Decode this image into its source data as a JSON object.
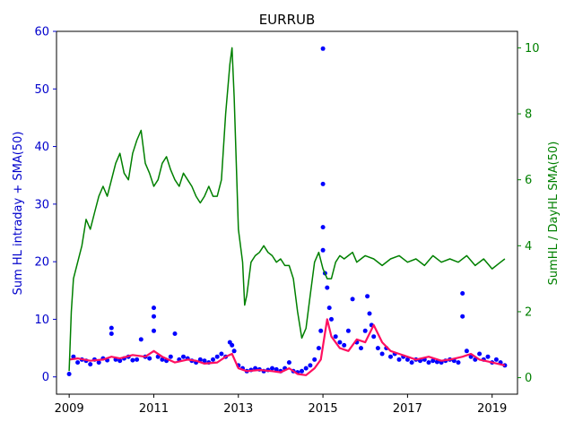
{
  "chart_data": {
    "type": "line",
    "title": "EURRUB",
    "xlabel": "",
    "ylabel_left": "Sum HL intraday + SMA(50)",
    "ylabel_right": "SumHL / DayHL SMA(50)",
    "xlim": [
      2008.7,
      2019.6
    ],
    "ylim_left": [
      -3,
      60
    ],
    "ylim_right": [
      -0.5,
      10.5
    ],
    "x_ticks": [
      {
        "value": 2009,
        "label": "2009"
      },
      {
        "value": 2011,
        "label": "2011"
      },
      {
        "value": 2013,
        "label": "2013"
      },
      {
        "value": 2015,
        "label": "2015"
      },
      {
        "value": 2017,
        "label": "2017"
      },
      {
        "value": 2019,
        "label": "2019"
      }
    ],
    "y_ticks_left": [
      {
        "value": 0,
        "label": "0"
      },
      {
        "value": 10,
        "label": "10"
      },
      {
        "value": 20,
        "label": "20"
      },
      {
        "value": 30,
        "label": "30"
      },
      {
        "value": 40,
        "label": "40"
      },
      {
        "value": 50,
        "label": "50"
      },
      {
        "value": 60,
        "label": "60"
      }
    ],
    "y_ticks_right": [
      {
        "value": 0,
        "label": "0"
      },
      {
        "value": 2,
        "label": "2"
      },
      {
        "value": 4,
        "label": "4"
      },
      {
        "value": 6,
        "label": "6"
      },
      {
        "value": 8,
        "label": "8"
      },
      {
        "value": 10,
        "label": "10"
      }
    ],
    "colors": {
      "left_axis": "#0000cc",
      "right_axis": "#008000",
      "scatter": "#0000ff",
      "sma": "#ff1060",
      "ratio": "#008000"
    },
    "series": [
      {
        "kind": "scatter",
        "axis": "left",
        "color": "#0000ff",
        "x": [
          2009.0,
          2009.1,
          2009.2,
          2009.3,
          2009.4,
          2009.5,
          2009.6,
          2009.7,
          2009.8,
          2009.9,
          2010.0,
          2010.0,
          2010.1,
          2010.2,
          2010.3,
          2010.4,
          2010.5,
          2010.6,
          2010.7,
          2010.8,
          2010.9,
          2011.0,
          2011.0,
          2011.0,
          2011.1,
          2011.2,
          2011.3,
          2011.4,
          2011.5,
          2011.6,
          2011.7,
          2011.8,
          2011.9,
          2012.0,
          2012.1,
          2012.2,
          2012.3,
          2012.4,
          2012.5,
          2012.6,
          2012.7,
          2012.8,
          2012.85,
          2012.9,
          2013.0,
          2013.1,
          2013.2,
          2013.3,
          2013.4,
          2013.5,
          2013.6,
          2013.7,
          2013.8,
          2013.9,
          2014.0,
          2014.1,
          2014.2,
          2014.3,
          2014.4,
          2014.5,
          2014.6,
          2014.7,
          2014.8,
          2014.9,
          2014.95,
          2015.0,
          2015.0,
          2015.0,
          2015.0,
          2015.05,
          2015.1,
          2015.15,
          2015.2,
          2015.3,
          2015.4,
          2015.5,
          2015.6,
          2015.7,
          2015.8,
          2015.9,
          2016.0,
          2016.05,
          2016.1,
          2016.15,
          2016.2,
          2016.3,
          2016.4,
          2016.5,
          2016.6,
          2016.7,
          2016.8,
          2016.9,
          2017.0,
          2017.1,
          2017.2,
          2017.3,
          2017.4,
          2017.5,
          2017.6,
          2017.7,
          2017.8,
          2017.9,
          2018.0,
          2018.1,
          2018.2,
          2018.3,
          2018.3,
          2018.4,
          2018.5,
          2018.6,
          2018.7,
          2018.8,
          2018.9,
          2019.0,
          2019.1,
          2019.2,
          2019.3
        ],
        "y": [
          0.5,
          3.5,
          2.5,
          3.0,
          2.8,
          2.2,
          3.0,
          2.5,
          3.2,
          2.9,
          8.5,
          7.5,
          3.0,
          2.8,
          3.2,
          3.5,
          2.9,
          3.0,
          6.5,
          3.5,
          3.2,
          12.0,
          10.5,
          8.0,
          3.5,
          3.0,
          2.8,
          3.5,
          7.5,
          3.0,
          3.5,
          3.2,
          2.8,
          2.5,
          3.0,
          2.8,
          2.5,
          3.0,
          3.5,
          4.0,
          3.5,
          6.0,
          5.5,
          4.5,
          2.0,
          1.5,
          1.0,
          1.2,
          1.5,
          1.3,
          1.0,
          1.2,
          1.5,
          1.3,
          1.0,
          1.5,
          2.5,
          1.0,
          0.8,
          1.0,
          1.5,
          2.0,
          3.0,
          5.0,
          8.0,
          57.0,
          33.5,
          26.0,
          22.0,
          18.0,
          15.5,
          12.0,
          10.0,
          7.0,
          6.0,
          5.5,
          8.0,
          13.5,
          6.0,
          5.0,
          8.0,
          14.0,
          11.0,
          9.0,
          7.0,
          5.0,
          4.0,
          5.0,
          3.5,
          4.0,
          3.0,
          3.5,
          3.0,
          2.5,
          3.0,
          2.8,
          3.0,
          2.5,
          2.8,
          2.6,
          2.5,
          2.8,
          3.0,
          2.8,
          2.5,
          14.5,
          10.5,
          4.5,
          3.5,
          3.0,
          4.0,
          3.0,
          3.5,
          2.5,
          3.0,
          2.5,
          2.0
        ]
      },
      {
        "kind": "line",
        "axis": "left",
        "color": "#ff1060",
        "x": [
          2009.0,
          2009.2,
          2009.5,
          2009.8,
          2010.0,
          2010.2,
          2010.5,
          2010.8,
          2011.0,
          2011.2,
          2011.5,
          2011.8,
          2012.0,
          2012.2,
          2012.5,
          2012.7,
          2012.85,
          2013.0,
          2013.2,
          2013.5,
          2013.8,
          2014.0,
          2014.2,
          2014.4,
          2014.6,
          2014.8,
          2014.95,
          2015.1,
          2015.2,
          2015.4,
          2015.6,
          2015.8,
          2016.0,
          2016.2,
          2016.4,
          2016.6,
          2016.8,
          2017.0,
          2017.2,
          2017.5,
          2017.8,
          2018.0,
          2018.3,
          2018.5,
          2018.7,
          2019.0,
          2019.3
        ],
        "y": [
          3.0,
          3.2,
          2.8,
          3.0,
          3.5,
          3.2,
          3.8,
          3.5,
          4.5,
          3.5,
          2.5,
          3.0,
          2.8,
          2.3,
          2.5,
          3.5,
          4.0,
          1.5,
          1.0,
          1.2,
          1.0,
          0.8,
          1.5,
          0.5,
          0.3,
          1.5,
          3.0,
          10.0,
          7.0,
          5.0,
          4.5,
          6.5,
          6.0,
          9.0,
          6.0,
          4.5,
          4.0,
          3.5,
          3.0,
          3.5,
          2.8,
          3.0,
          3.5,
          4.0,
          3.0,
          2.5,
          2.0
        ]
      },
      {
        "kind": "line",
        "axis": "right",
        "color": "#008000",
        "x": [
          2009.0,
          2009.05,
          2009.1,
          2009.2,
          2009.3,
          2009.4,
          2009.5,
          2009.6,
          2009.7,
          2009.8,
          2009.9,
          2010.0,
          2010.1,
          2010.2,
          2010.3,
          2010.4,
          2010.5,
          2010.6,
          2010.7,
          2010.8,
          2010.9,
          2011.0,
          2011.1,
          2011.2,
          2011.3,
          2011.4,
          2011.5,
          2011.6,
          2011.7,
          2011.8,
          2011.9,
          2012.0,
          2012.1,
          2012.2,
          2012.3,
          2012.4,
          2012.5,
          2012.6,
          2012.7,
          2012.8,
          2012.85,
          2012.9,
          2013.0,
          2013.1,
          2013.15,
          2013.2,
          2013.3,
          2013.4,
          2013.5,
          2013.6,
          2013.7,
          2013.8,
          2013.9,
          2014.0,
          2014.1,
          2014.2,
          2014.3,
          2014.4,
          2014.5,
          2014.6,
          2014.7,
          2014.8,
          2014.9,
          2015.0,
          2015.1,
          2015.2,
          2015.3,
          2015.4,
          2015.5,
          2015.6,
          2015.7,
          2015.8,
          2015.9,
          2016.0,
          2016.2,
          2016.4,
          2016.6,
          2016.8,
          2017.0,
          2017.2,
          2017.4,
          2017.6,
          2017.8,
          2018.0,
          2018.2,
          2018.4,
          2018.6,
          2018.8,
          2019.0,
          2019.2,
          2019.3
        ],
        "y": [
          0.2,
          2.0,
          3.0,
          3.5,
          4.0,
          4.8,
          4.5,
          5.0,
          5.5,
          5.8,
          5.5,
          6.0,
          6.5,
          6.8,
          6.2,
          6.0,
          6.8,
          7.2,
          7.5,
          6.5,
          6.2,
          5.8,
          6.0,
          6.5,
          6.7,
          6.3,
          6.0,
          5.8,
          6.2,
          6.0,
          5.8,
          5.5,
          5.3,
          5.5,
          5.8,
          5.5,
          5.5,
          6.0,
          8.0,
          9.5,
          10.0,
          8.5,
          4.5,
          3.5,
          2.2,
          2.5,
          3.5,
          3.7,
          3.8,
          4.0,
          3.8,
          3.7,
          3.5,
          3.6,
          3.4,
          3.4,
          3.0,
          2.0,
          1.2,
          1.5,
          2.5,
          3.5,
          3.8,
          3.3,
          3.0,
          3.0,
          3.5,
          3.7,
          3.6,
          3.7,
          3.8,
          3.5,
          3.6,
          3.7,
          3.6,
          3.4,
          3.6,
          3.7,
          3.5,
          3.6,
          3.4,
          3.7,
          3.5,
          3.6,
          3.5,
          3.7,
          3.4,
          3.6,
          3.3,
          3.5,
          3.6
        ]
      }
    ]
  }
}
